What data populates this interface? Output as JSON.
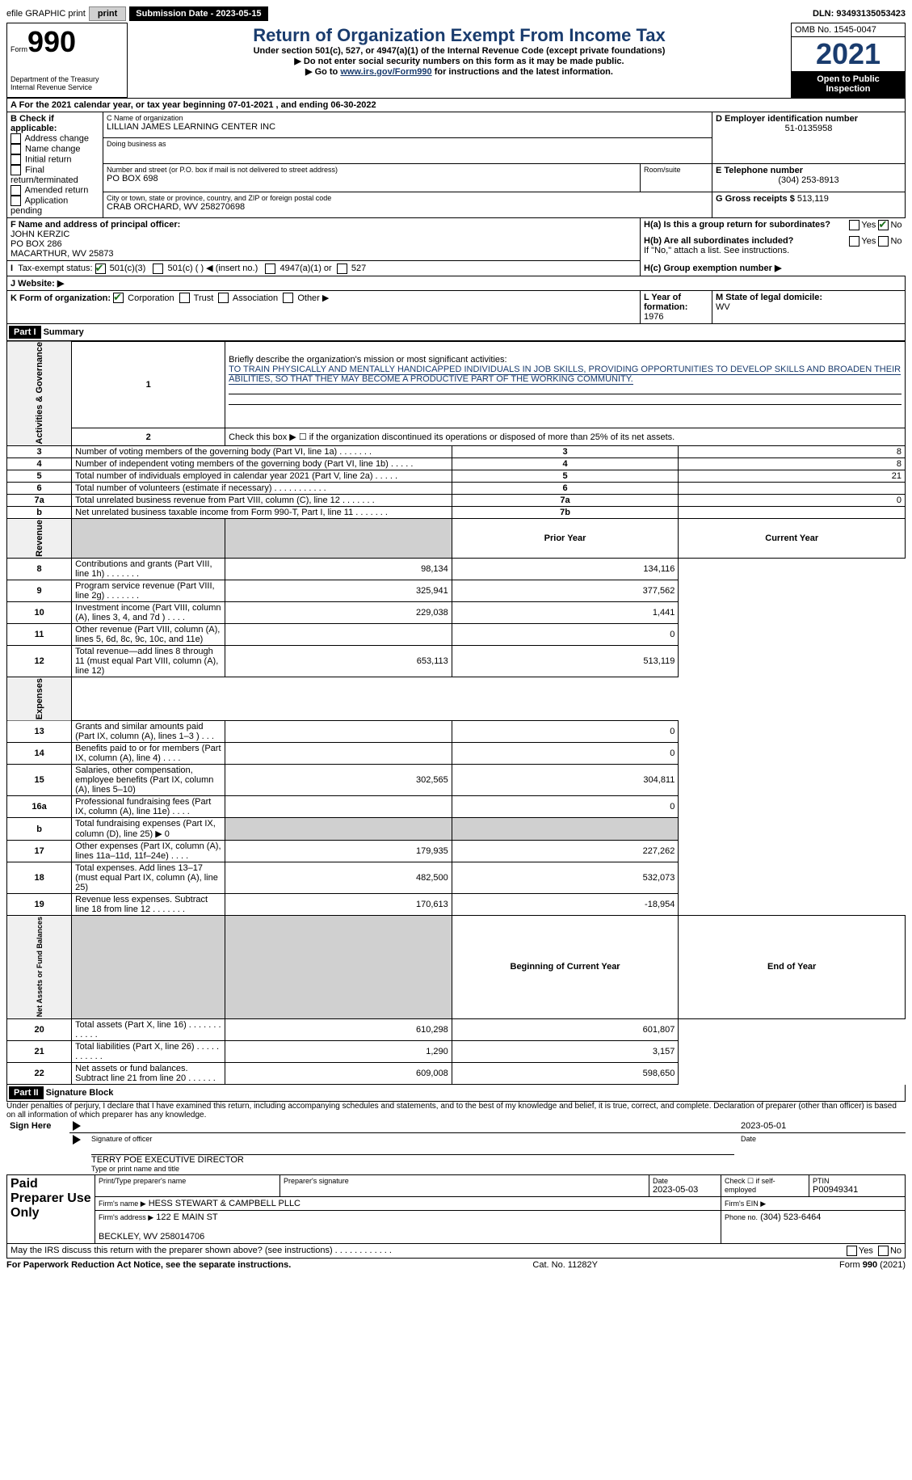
{
  "topBar": {
    "efile": "efile GRAPHIC print",
    "submission": "Submission Date - 2023-05-15",
    "dln": "DLN: 93493135053423"
  },
  "header": {
    "formWord": "Form",
    "form990": "990",
    "title": "Return of Organization Exempt From Income Tax",
    "subtitle": "Under section 501(c), 527, or 4947(a)(1) of the Internal Revenue Code (except private foundations)",
    "note1": "▶ Do not enter social security numbers on this form as it may be made public.",
    "note2_pre": "▶ Go to ",
    "note2_link": "www.irs.gov/Form990",
    "note2_post": " for instructions and the latest information.",
    "dept": "Department of the Treasury\nInternal Revenue Service",
    "omb": "OMB No. 1545-0047",
    "year": "2021",
    "openPublic": "Open to Public Inspection"
  },
  "sectionA": {
    "calYear": "A For the 2021 calendar year, or tax year beginning 07-01-2021    , and ending 06-30-2022",
    "checkLabel": "B Check if applicable:",
    "checks": [
      "Address change",
      "Name change",
      "Initial return",
      "Final return/terminated",
      "Amended return",
      "Application pending"
    ],
    "nameLabel": "C Name of organization",
    "name": "LILLIAN JAMES LEARNING CENTER INC",
    "dba": "Doing business as",
    "streetLabel": "Number and street (or P.O. box if mail is not delivered to street address)",
    "street": "PO BOX 698",
    "roomLabel": "Room/suite",
    "cityLabel": "City or town, state or province, country, and ZIP or foreign postal code",
    "city": "CRAB ORCHARD, WV  258270698",
    "einLabel": "D Employer identification number",
    "ein": "51-0135958",
    "phoneLabel": "E Telephone number",
    "phone": "(304) 253-8913",
    "grossLabel": "G Gross receipts $",
    "gross": "513,119",
    "officerLabel": "F Name and address of principal officer:",
    "officer": "JOHN KERZIC\nPO BOX 286\nMACARTHUR, WV  25873",
    "h_a": "H(a)  Is this a group return for subordinates?",
    "h_b": "H(b)  Are all subordinates included?",
    "h_note": "If \"No,\" attach a list. See instructions.",
    "h_c": "H(c)  Group exemption number ▶",
    "taxStatus": "Tax-exempt status:",
    "status_opts": [
      "501(c)(3)",
      "501(c) (   ) ◀ (insert no.)",
      "4947(a)(1) or",
      "527"
    ],
    "websiteLabel": "J Website: ▶",
    "formOrg": "K Form of organization:",
    "formOrg_opts": [
      "Corporation",
      "Trust",
      "Association",
      "Other ▶"
    ],
    "yearFormLabel": "L Year of formation:",
    "yearForm": "1976",
    "domicileLabel": "M State of legal domicile:",
    "domicile": "WV"
  },
  "part1": {
    "label": "Part I",
    "title": "Summary",
    "line1_label": "Briefly describe the organization's mission or most significant activities:",
    "line1_text": "TO TRAIN PHYSICALLY AND MENTALLY HANDICAPPED INDIVIDUALS IN JOB SKILLS, PROVIDING OPPORTUNITIES TO DEVELOP SKILLS AND BROADEN THEIR ABILITIES, SO THAT THEY MAY BECOME A PRODUCTIVE PART OF THE WORKING COMMUNITY.",
    "line2": "Check this box ▶ ☐ if the organization discontinued its operations or disposed of more than 25% of its net assets.",
    "sections": {
      "gov": "Activities & Governance",
      "rev": "Revenue",
      "exp": "Expenses",
      "net": "Net Assets or Fund Balances"
    },
    "priorYear": "Prior Year",
    "currentYear": "Current Year",
    "beginYear": "Beginning of Current Year",
    "endYear": "End of Year",
    "rows_gov": [
      {
        "n": "3",
        "t": "Number of voting members of the governing body (Part VI, line 1a)  .    .    .    .    .    .    .",
        "box": "3",
        "v": "8"
      },
      {
        "n": "4",
        "t": "Number of independent voting members of the governing body (Part VI, line 1b)  .    .    .    .    .",
        "box": "4",
        "v": "8"
      },
      {
        "n": "5",
        "t": "Total number of individuals employed in calendar year 2021 (Part V, line 2a)  .    .    .    .    .",
        "box": "5",
        "v": "21"
      },
      {
        "n": "6",
        "t": "Total number of volunteers (estimate if necessary)    .    .    .    .    .    .    .    .    .    .    .",
        "box": "6",
        "v": ""
      },
      {
        "n": "7a",
        "t": "Total unrelated business revenue from Part VIII, column (C), line 12   .    .    .    .    .    .    .",
        "box": "7a",
        "v": "0"
      },
      {
        "n": "b",
        "t": "Net unrelated business taxable income from Form 990-T, Part I, line 11  .    .    .    .    .    .    .",
        "box": "7b",
        "v": ""
      }
    ],
    "rows_rev": [
      {
        "n": "8",
        "t": "Contributions and grants (Part VIII, line 1h)   .    .    .    .    .    .    .",
        "py": "98,134",
        "cy": "134,116"
      },
      {
        "n": "9",
        "t": "Program service revenue (Part VIII, line 2g)  .    .    .    .    .    .    .",
        "py": "325,941",
        "cy": "377,562"
      },
      {
        "n": "10",
        "t": "Investment income (Part VIII, column (A), lines 3, 4, and 7d )   .    .    .    .",
        "py": "229,038",
        "cy": "1,441"
      },
      {
        "n": "11",
        "t": "Other revenue (Part VIII, column (A), lines 5, 6d, 8c, 9c, 10c, and 11e)",
        "py": "",
        "cy": "0"
      },
      {
        "n": "12",
        "t": "Total revenue—add lines 8 through 11 (must equal Part VIII, column (A), line 12)",
        "py": "653,113",
        "cy": "513,119"
      }
    ],
    "rows_exp": [
      {
        "n": "13",
        "t": "Grants and similar amounts paid (Part IX, column (A), lines 1–3 )  .    .    .",
        "py": "",
        "cy": "0"
      },
      {
        "n": "14",
        "t": "Benefits paid to or for members (Part IX, column (A), line 4)  .    .    .    .",
        "py": "",
        "cy": "0"
      },
      {
        "n": "15",
        "t": "Salaries, other compensation, employee benefits (Part IX, column (A), lines 5–10)",
        "py": "302,565",
        "cy": "304,811"
      },
      {
        "n": "16a",
        "t": "Professional fundraising fees (Part IX, column (A), line 11e)   .    .    .    .",
        "py": "",
        "cy": "0"
      },
      {
        "n": "b",
        "t": "Total fundraising expenses (Part IX, column (D), line 25) ▶ 0",
        "py": "gray",
        "cy": "gray"
      },
      {
        "n": "17",
        "t": "Other expenses (Part IX, column (A), lines 11a–11d, 11f–24e)   .    .    .    .",
        "py": "179,935",
        "cy": "227,262"
      },
      {
        "n": "18",
        "t": "Total expenses. Add lines 13–17 (must equal Part IX, column (A), line 25)",
        "py": "482,500",
        "cy": "532,073"
      },
      {
        "n": "19",
        "t": "Revenue less expenses. Subtract line 18 from line 12 .    .    .    .    .    .    .",
        "py": "170,613",
        "cy": "-18,954"
      }
    ],
    "rows_net": [
      {
        "n": "20",
        "t": "Total assets (Part X, line 16)  .    .    .    .    .    .    .    .    .    .    .    .",
        "py": "610,298",
        "cy": "601,807"
      },
      {
        "n": "21",
        "t": "Total liabilities (Part X, line 26)  .    .    .    .    .    .    .    .    .    .    .",
        "py": "1,290",
        "cy": "3,157"
      },
      {
        "n": "22",
        "t": "Net assets or fund balances. Subtract line 21 from line 20 .    .    .    .    .    .",
        "py": "609,008",
        "cy": "598,650"
      }
    ]
  },
  "part2": {
    "label": "Part II",
    "title": "Signature Block",
    "declaration": "Under penalties of perjury, I declare that I have examined this return, including accompanying schedules and statements, and to the best of my knowledge and belief, it is true, correct, and complete. Declaration of preparer (other than officer) is based on all information of which preparer has any knowledge.",
    "signHere": "Sign Here",
    "sigDate": "2023-05-01",
    "sigOfficer": "Signature of officer",
    "dateLabel": "Date",
    "officerName": "TERRY POE  EXECUTIVE DIRECTOR",
    "typeName": "Type or print name and title",
    "paid": "Paid Preparer Use Only",
    "prepName": "Print/Type preparer's name",
    "prepSig": "Preparer's signature",
    "prepDate": "Date",
    "prepDateVal": "2023-05-03",
    "checkSelf": "Check ☐ if self-employed",
    "ptin": "PTIN",
    "ptinVal": "P00949341",
    "firmName": "Firm's name    ▶",
    "firmNameVal": "HESS STEWART & CAMPBELL PLLC",
    "firmEin": "Firm's EIN ▶",
    "firmAddr": "Firm's address ▶",
    "firmAddrVal": "122 E MAIN ST\n\nBECKLEY, WV  258014706",
    "firmPhone": "Phone no.",
    "firmPhoneVal": "(304) 523-6464",
    "mayIRS": "May the IRS discuss this return with the preparer shown above? (see instructions)   .    .    .    .    .    .    .    .    .    .    .    ."
  },
  "footer": {
    "left": "For Paperwork Reduction Act Notice, see the separate instructions.",
    "mid": "Cat. No. 11282Y",
    "right": "Form 990 (2021)"
  }
}
